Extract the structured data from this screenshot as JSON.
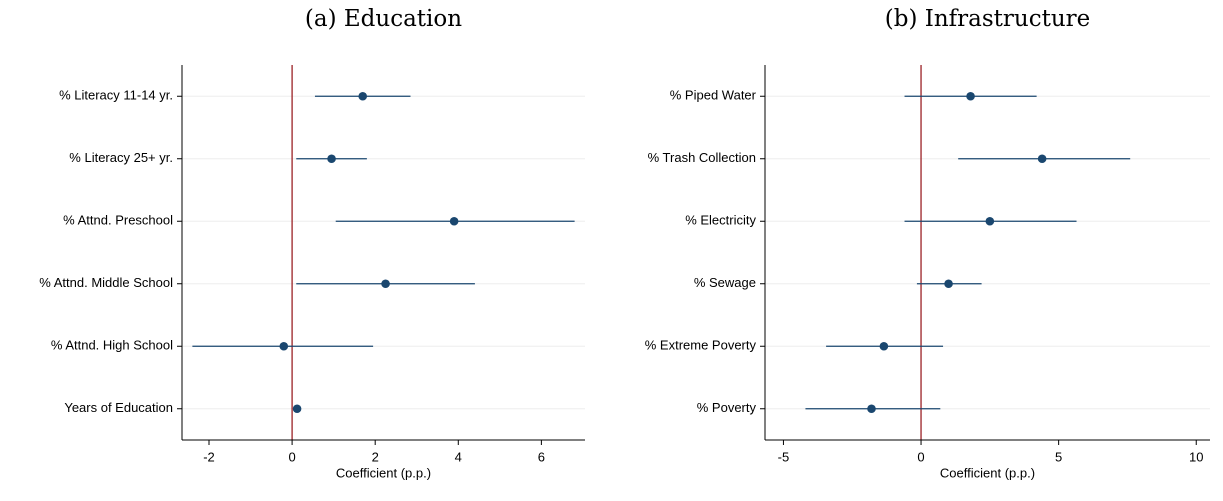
{
  "chart_data": [
    {
      "type": "coefplot",
      "title": "(a) Education",
      "x_label": "Coefficient (p.p.)",
      "categories": [
        "% Literacy 11-14 yr.",
        "% Literacy 25+ yr.",
        "% Attnd. Preschool",
        "% Attnd. Middle School",
        "% Attnd. High School",
        "Years of Education"
      ],
      "values": [
        1.7,
        0.95,
        3.9,
        2.25,
        -0.2,
        0.12
      ],
      "ci_low": [
        0.55,
        0.1,
        1.05,
        0.1,
        -2.4,
        0.08
      ],
      "ci_high": [
        2.85,
        1.8,
        6.8,
        4.4,
        1.95,
        0.16
      ],
      "color": "#1a476f",
      "reference_line": 0,
      "reference_color": "#9b2226",
      "xlim": [
        -2.65,
        7.05
      ],
      "xticks": [
        -2,
        0,
        2,
        4,
        6
      ],
      "grid": true
    },
    {
      "type": "coefplot",
      "title": "(b) Infrastructure",
      "x_label": "Coefficient (p.p.)",
      "categories": [
        "% Piped Water",
        "% Trash Collection",
        "% Electricity",
        "% Sewage",
        "% Extreme Poverty",
        "% Poverty"
      ],
      "values": [
        1.8,
        4.4,
        2.5,
        1.0,
        -1.35,
        -1.8
      ],
      "ci_low": [
        -0.6,
        1.35,
        -0.6,
        -0.15,
        -3.45,
        -4.2
      ],
      "ci_high": [
        4.2,
        7.6,
        5.65,
        2.2,
        0.8,
        0.7
      ],
      "color": "#1a476f",
      "reference_line": 0,
      "reference_color": "#9b2226",
      "xlim": [
        -5.67,
        10.5
      ],
      "xticks": [
        -5,
        0,
        5,
        10
      ],
      "grid": true
    }
  ]
}
